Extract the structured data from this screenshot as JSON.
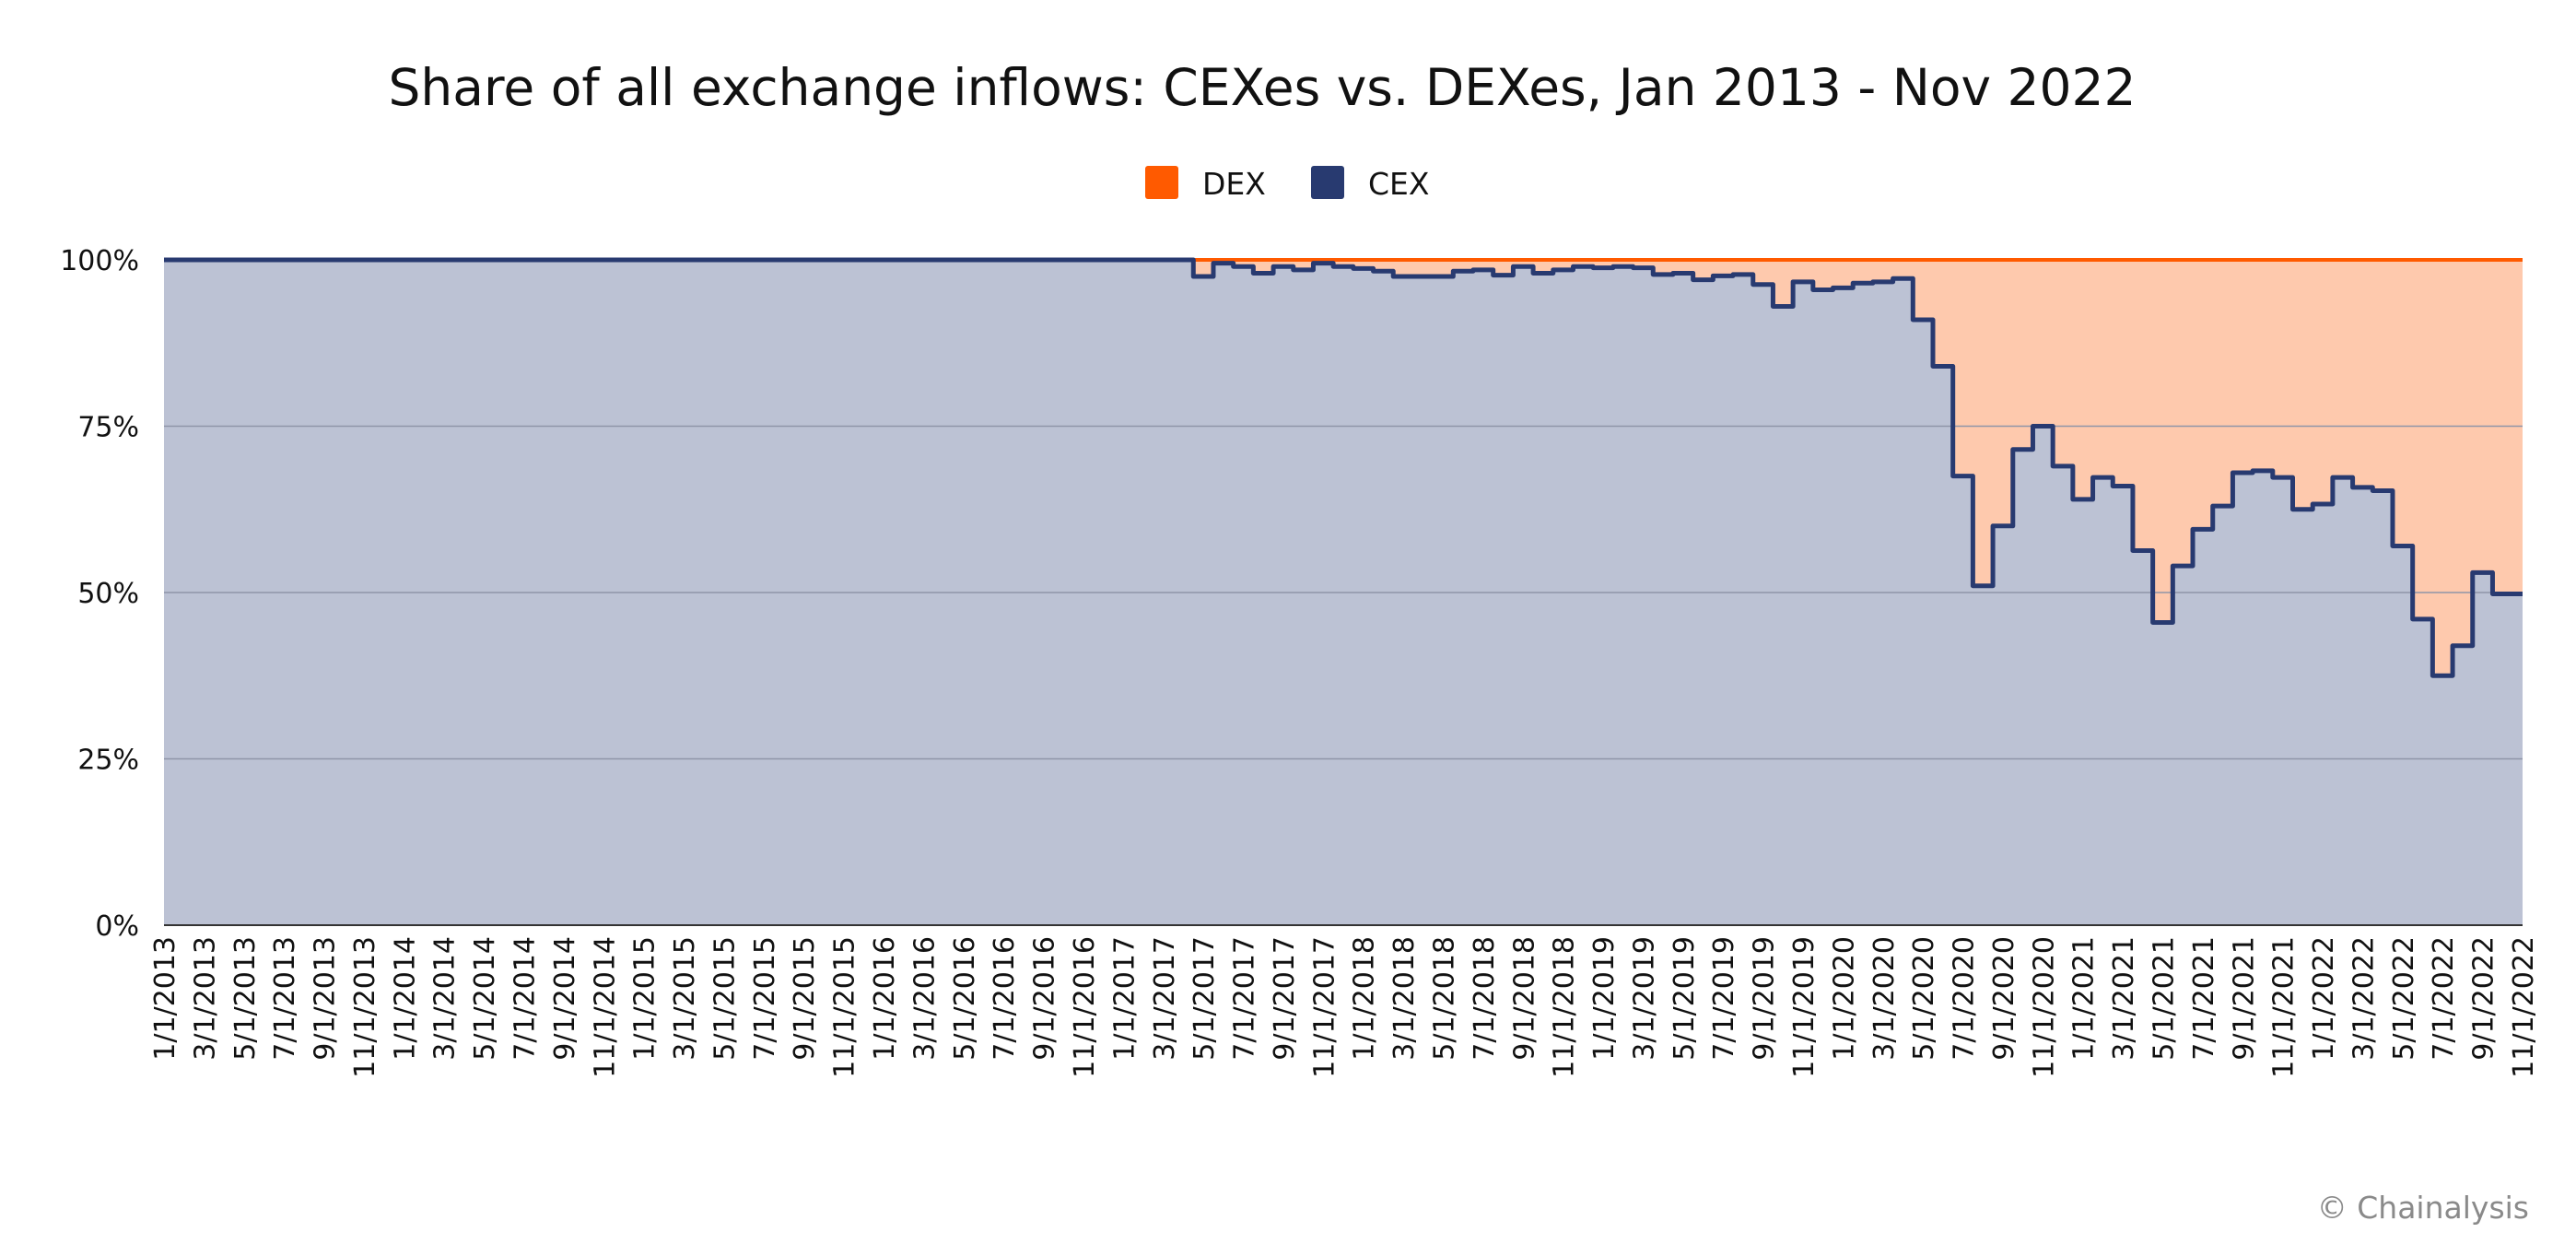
{
  "chart_data": {
    "type": "area",
    "subtype": "stacked-percent-step",
    "title": "Share of all exchange inflows: CEXes vs. DEXes, Jan 2013 - Nov 2022",
    "xlabel": "",
    "ylabel": "",
    "ylim": [
      0,
      100
    ],
    "y_ticks": [
      "0%",
      "25%",
      "50%",
      "75%",
      "100%"
    ],
    "legend": {
      "placement": "top-center",
      "items": [
        "DEX",
        "CEX"
      ]
    },
    "grid": true,
    "colors": {
      "DEX": "#FF5A00",
      "DEX_fill": "#FEC9AD",
      "CEX": "#283A70",
      "CEX_fill": "#BCC2D4",
      "grid": "#8F95A8",
      "text": "#111111",
      "credit": "#8A8A8A"
    },
    "x_tick_labels": [
      "1/1/2013",
      "3/1/2013",
      "5/1/2013",
      "7/1/2013",
      "9/1/2013",
      "11/1/2013",
      "1/1/2014",
      "3/1/2014",
      "5/1/2014",
      "7/1/2014",
      "9/1/2014",
      "11/1/2014",
      "1/1/2015",
      "3/1/2015",
      "5/1/2015",
      "7/1/2015",
      "9/1/2015",
      "11/1/2015",
      "1/1/2016",
      "3/1/2016",
      "5/1/2016",
      "7/1/2016",
      "9/1/2016",
      "11/1/2016",
      "1/1/2017",
      "3/1/2017",
      "5/1/2017",
      "7/1/2017",
      "9/1/2017",
      "11/1/2017",
      "1/1/2018",
      "3/1/2018",
      "5/1/2018",
      "7/1/2018",
      "9/1/2018",
      "11/1/2018",
      "1/1/2019",
      "3/1/2019",
      "5/1/2019",
      "7/1/2019",
      "9/1/2019",
      "11/1/2019",
      "1/1/2020",
      "3/1/2020",
      "5/1/2020",
      "7/1/2020",
      "9/1/2020",
      "11/1/2020",
      "1/1/2021",
      "3/1/2021",
      "5/1/2021",
      "7/1/2021",
      "9/1/2021",
      "11/1/2021",
      "1/1/2022",
      "3/1/2022",
      "5/1/2022",
      "7/1/2022",
      "9/1/2022",
      "11/1/2022"
    ],
    "x_months": [
      "2013-01",
      "2013-02",
      "2013-03",
      "2013-04",
      "2013-05",
      "2013-06",
      "2013-07",
      "2013-08",
      "2013-09",
      "2013-10",
      "2013-11",
      "2013-12",
      "2014-01",
      "2014-02",
      "2014-03",
      "2014-04",
      "2014-05",
      "2014-06",
      "2014-07",
      "2014-08",
      "2014-09",
      "2014-10",
      "2014-11",
      "2014-12",
      "2015-01",
      "2015-02",
      "2015-03",
      "2015-04",
      "2015-05",
      "2015-06",
      "2015-07",
      "2015-08",
      "2015-09",
      "2015-10",
      "2015-11",
      "2015-12",
      "2016-01",
      "2016-02",
      "2016-03",
      "2016-04",
      "2016-05",
      "2016-06",
      "2016-07",
      "2016-08",
      "2016-09",
      "2016-10",
      "2016-11",
      "2016-12",
      "2017-01",
      "2017-02",
      "2017-03",
      "2017-04",
      "2017-05",
      "2017-06",
      "2017-07",
      "2017-08",
      "2017-09",
      "2017-10",
      "2017-11",
      "2017-12",
      "2018-01",
      "2018-02",
      "2018-03",
      "2018-04",
      "2018-05",
      "2018-06",
      "2018-07",
      "2018-08",
      "2018-09",
      "2018-10",
      "2018-11",
      "2018-12",
      "2019-01",
      "2019-02",
      "2019-03",
      "2019-04",
      "2019-05",
      "2019-06",
      "2019-07",
      "2019-08",
      "2019-09",
      "2019-10",
      "2019-11",
      "2019-12",
      "2020-01",
      "2020-02",
      "2020-03",
      "2020-04",
      "2020-05",
      "2020-06",
      "2020-07",
      "2020-08",
      "2020-09",
      "2020-10",
      "2020-11",
      "2020-12",
      "2021-01",
      "2021-02",
      "2021-03",
      "2021-04",
      "2021-05",
      "2021-06",
      "2021-07",
      "2021-08",
      "2021-09",
      "2021-10",
      "2021-11",
      "2021-12",
      "2022-01",
      "2022-02",
      "2022-03",
      "2022-04",
      "2022-05",
      "2022-06",
      "2022-07",
      "2022-08",
      "2022-09",
      "2022-10",
      "2022-11"
    ],
    "series": [
      {
        "name": "CEX",
        "values": [
          100,
          100,
          100,
          100,
          100,
          100,
          100,
          100,
          100,
          100,
          100,
          100,
          100,
          100,
          100,
          100,
          100,
          100,
          100,
          100,
          100,
          100,
          100,
          100,
          100,
          100,
          100,
          100,
          100,
          100,
          100,
          100,
          100,
          100,
          100,
          100,
          100,
          100,
          100,
          100,
          100,
          100,
          100,
          100,
          100,
          100,
          100,
          100,
          100,
          100,
          100,
          100,
          97.5,
          99.5,
          99,
          98,
          99,
          98.5,
          99.5,
          99,
          98.7,
          98.3,
          97.5,
          97.5,
          97.5,
          98.3,
          98.5,
          97.7,
          99,
          98,
          98.5,
          99,
          98.8,
          99,
          98.8,
          97.8,
          98,
          97,
          97.6,
          97.8,
          96.3,
          93,
          96.7,
          95.5,
          95.8,
          96.5,
          96.7,
          97.2,
          91,
          84,
          67.5,
          51,
          60,
          71.5,
          75,
          69,
          64,
          67.3,
          66,
          56.3,
          45.5,
          54,
          59.5,
          63,
          68,
          68.3,
          67.3,
          62.5,
          63.3,
          67.3,
          65.8,
          65.3,
          57,
          46,
          37.5,
          42,
          53,
          49.8,
          49.8
        ]
      },
      {
        "name": "DEX",
        "values": [
          0,
          0,
          0,
          0,
          0,
          0,
          0,
          0,
          0,
          0,
          0,
          0,
          0,
          0,
          0,
          0,
          0,
          0,
          0,
          0,
          0,
          0,
          0,
          0,
          0,
          0,
          0,
          0,
          0,
          0,
          0,
          0,
          0,
          0,
          0,
          0,
          0,
          0,
          0,
          0,
          0,
          0,
          0,
          0,
          0,
          0,
          0,
          0,
          0,
          0,
          0,
          0,
          2.5,
          0.5,
          1,
          2,
          1,
          1.5,
          0.5,
          1,
          1.3,
          1.7,
          2.5,
          2.5,
          2.5,
          1.7,
          1.5,
          2.3,
          1,
          2,
          1.5,
          1,
          1.2,
          1,
          1.2,
          2.2,
          2,
          3,
          2.4,
          2.2,
          3.7,
          7,
          3.3,
          4.5,
          4.2,
          3.5,
          3.3,
          2.8,
          9,
          16,
          32.5,
          49,
          40,
          28.5,
          25,
          31,
          36,
          32.7,
          34,
          43.7,
          54.5,
          46,
          40.5,
          37,
          32,
          31.7,
          32.7,
          37.5,
          36.7,
          32.7,
          34.2,
          34.7,
          43,
          54,
          62.5,
          58,
          47,
          50.2,
          50.2
        ]
      }
    ]
  },
  "credit": "© Chainalysis"
}
